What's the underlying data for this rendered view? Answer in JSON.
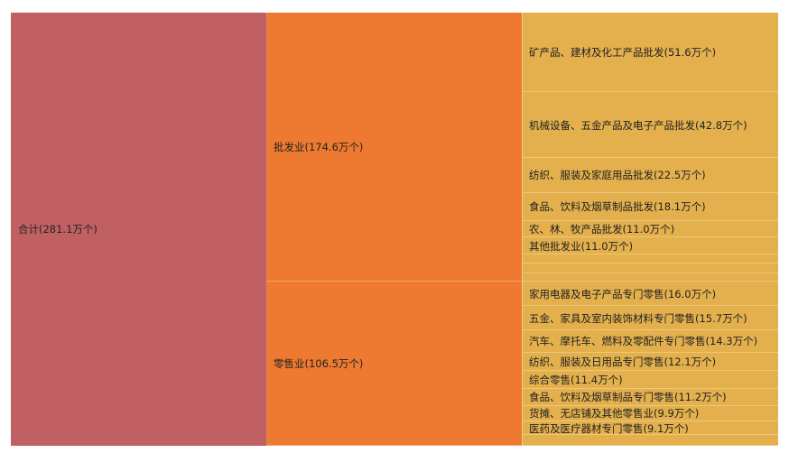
{
  "chart_data": {
    "type": "icicle",
    "root": {
      "label": "合计(281.1万个)",
      "value": 281.1
    },
    "groups": [
      {
        "label": "批发业(174.6万个)",
        "value": 174.6,
        "children": [
          {
            "label": "矿产品、建材及化工产品批发(51.6万个)",
            "value": 51.6
          },
          {
            "label": "机械设备、五金产品及电子产品批发(42.8万个)",
            "value": 42.8
          },
          {
            "label": "纺织、服装及家庭用品批发(22.5万个)",
            "value": 22.5
          },
          {
            "label": "食品、饮料及烟草制品批发(18.1万个)",
            "value": 18.1
          },
          {
            "label": "农、林、牧产品批发(11.0万个)",
            "value": 11.0
          },
          {
            "label": "其他批发业(11.0万个)",
            "value": 11.0
          },
          {
            "label": "",
            "value": 6.0
          },
          {
            "label": "",
            "value": 6.0
          },
          {
            "label": "",
            "value": 5.6
          }
        ]
      },
      {
        "label": "零售业(106.5万个)",
        "value": 106.5,
        "children": [
          {
            "label": "家用电器及电子产品专门零售(16.0万个)",
            "value": 16.0
          },
          {
            "label": "五金、家具及室内装饰材料专门零售(15.7万个)",
            "value": 15.7
          },
          {
            "label": "汽车、摩托车、燃料及零配件专门零售(14.3万个)",
            "value": 14.3
          },
          {
            "label": "纺织、服装及日用品专门零售(12.1万个)",
            "value": 12.1
          },
          {
            "label": "综合零售(11.4万个)",
            "value": 11.4
          },
          {
            "label": "食品、饮料及烟草制品专门零售(11.2万个)",
            "value": 11.2
          },
          {
            "label": "货摊、无店铺及其他零售业(9.9万个)",
            "value": 9.9
          },
          {
            "label": "医药及医疗器材专门零售(9.1万个)",
            "value": 9.1
          },
          {
            "label": "",
            "value": 6.8
          }
        ]
      }
    ],
    "colors": {
      "root": "#c06062",
      "group": "#ed7a30",
      "leaf": "#e3b04d"
    }
  }
}
